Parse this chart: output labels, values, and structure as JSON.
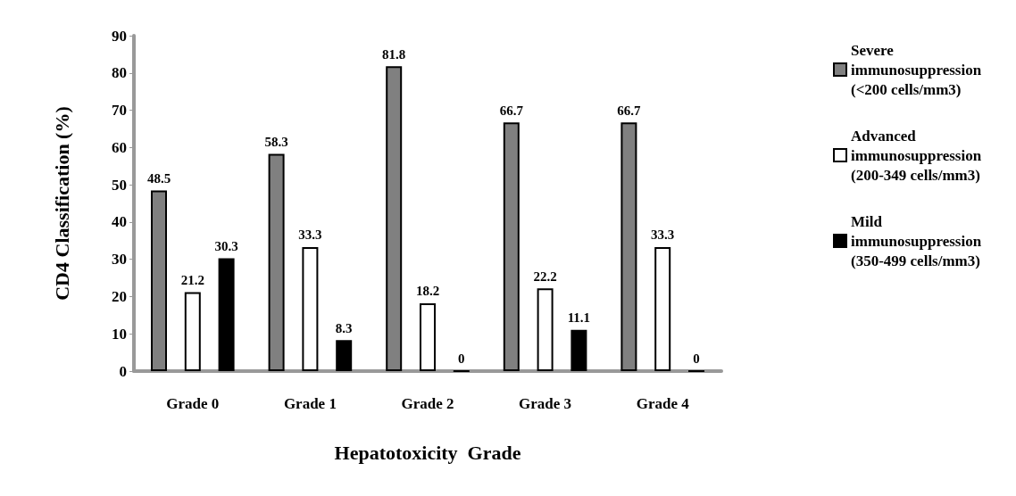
{
  "chart_data": {
    "type": "bar",
    "xlabel": "Hepatotoxicity  Grade",
    "ylabel": "CD4 Classification (%)",
    "categories": [
      "Grade 0",
      "Grade 1",
      "Grade 2",
      "Grade 3",
      "Grade 4"
    ],
    "series": [
      {
        "name": "Severe immunosuppression (<200 cells/mm3)",
        "color": "#808080",
        "values": [
          48.5,
          58.3,
          81.8,
          66.7,
          66.7
        ]
      },
      {
        "name": "Advanced immunosuppression (200-349 cells/mm3)",
        "color": "#ffffff",
        "values": [
          21.2,
          33.3,
          18.2,
          22.2,
          33.3
        ]
      },
      {
        "name": "Mild immunosuppression (350-499 cells/mm3)",
        "color": "#000000",
        "values": [
          30.3,
          8.3,
          0,
          11.1,
          0
        ]
      }
    ],
    "ylim": [
      0,
      90
    ],
    "yticks": [
      0,
      10,
      20,
      30,
      40,
      50,
      60,
      70,
      80,
      90
    ],
    "grid": false,
    "legend": "right",
    "data_labels": true
  }
}
